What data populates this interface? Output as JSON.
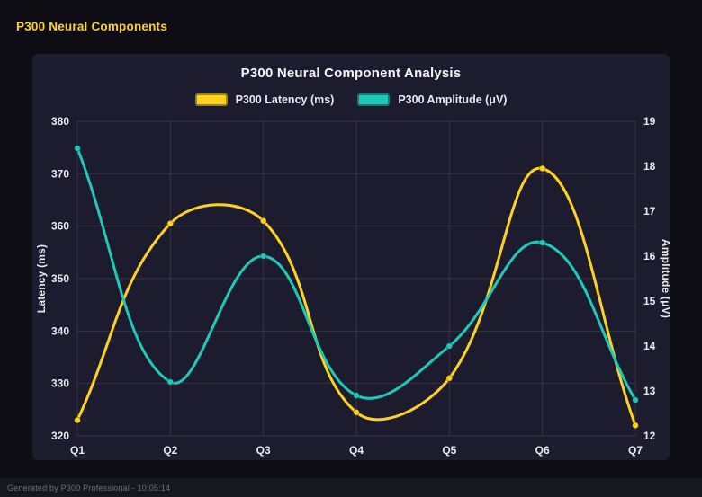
{
  "header": {
    "title": "P300 Neural Components"
  },
  "footer": {
    "text": "Generated by P300 Professional - 10:05:14"
  },
  "colors": {
    "background": "#0d0d13",
    "panel": "#1c1c2e",
    "accent_yellow": "#ffd21f",
    "accent_teal": "#1fc8b8",
    "grid": "rgba(255,255,255,0.10)",
    "text": "#e9e9ee"
  },
  "chart_data": {
    "type": "line",
    "title": "P300 Neural Component Analysis",
    "categories": [
      "Q1",
      "Q2",
      "Q3",
      "Q4",
      "Q5",
      "Q6",
      "Q7"
    ],
    "series": [
      {
        "name": "P300 Latency (ms)",
        "axis": "left",
        "color": "#ffd21f",
        "values": [
          323,
          360.5,
          361,
          324.5,
          331,
          371,
          322
        ]
      },
      {
        "name": "P300 Amplitude (μV)",
        "axis": "right",
        "color": "#1fc8b8",
        "values": [
          18.4,
          13.2,
          16.0,
          12.9,
          14.0,
          16.3,
          12.8
        ]
      }
    ],
    "left_axis": {
      "label": "Latency (ms)",
      "min": 320,
      "max": 380,
      "step": 10,
      "ticks": [
        320,
        330,
        340,
        350,
        360,
        370,
        380
      ]
    },
    "right_axis": {
      "label": "Amplitude (μV)",
      "min": 12,
      "max": 19,
      "step": 1,
      "ticks": [
        12,
        13,
        14,
        15,
        16,
        17,
        18,
        19
      ]
    },
    "grid": true,
    "legend_position": "top",
    "curve": "smooth"
  }
}
